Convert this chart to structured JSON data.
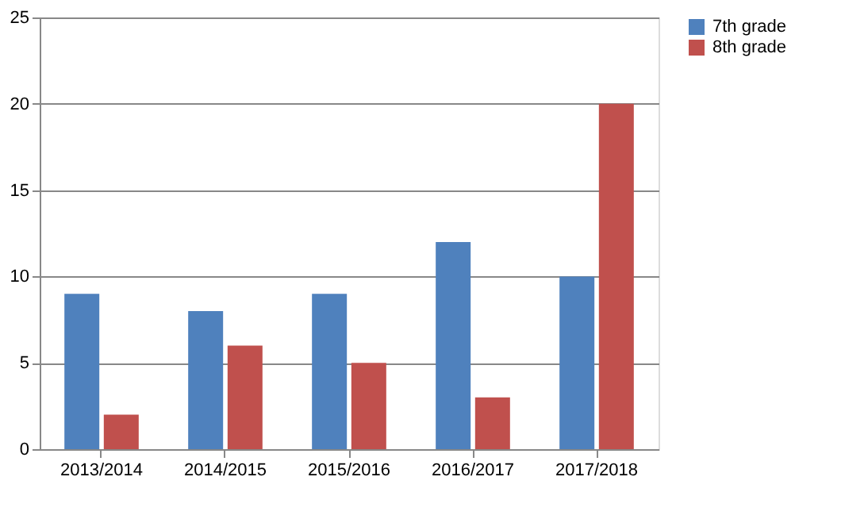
{
  "chart_data": {
    "type": "bar",
    "categories": [
      "2013/2014",
      "2014/2015",
      "2015/2016",
      "2016/2017",
      "2017/2018"
    ],
    "series": [
      {
        "name": "7th grade",
        "color": "#4f81bd",
        "values": [
          9,
          8,
          9,
          12,
          10
        ]
      },
      {
        "name": "8th grade",
        "color": "#c0504d",
        "values": [
          2,
          6,
          5,
          3,
          20
        ]
      }
    ],
    "ylim": [
      0,
      25
    ],
    "yticks": [
      0,
      5,
      10,
      15,
      20,
      25
    ],
    "grid": "y",
    "legend": "right"
  }
}
